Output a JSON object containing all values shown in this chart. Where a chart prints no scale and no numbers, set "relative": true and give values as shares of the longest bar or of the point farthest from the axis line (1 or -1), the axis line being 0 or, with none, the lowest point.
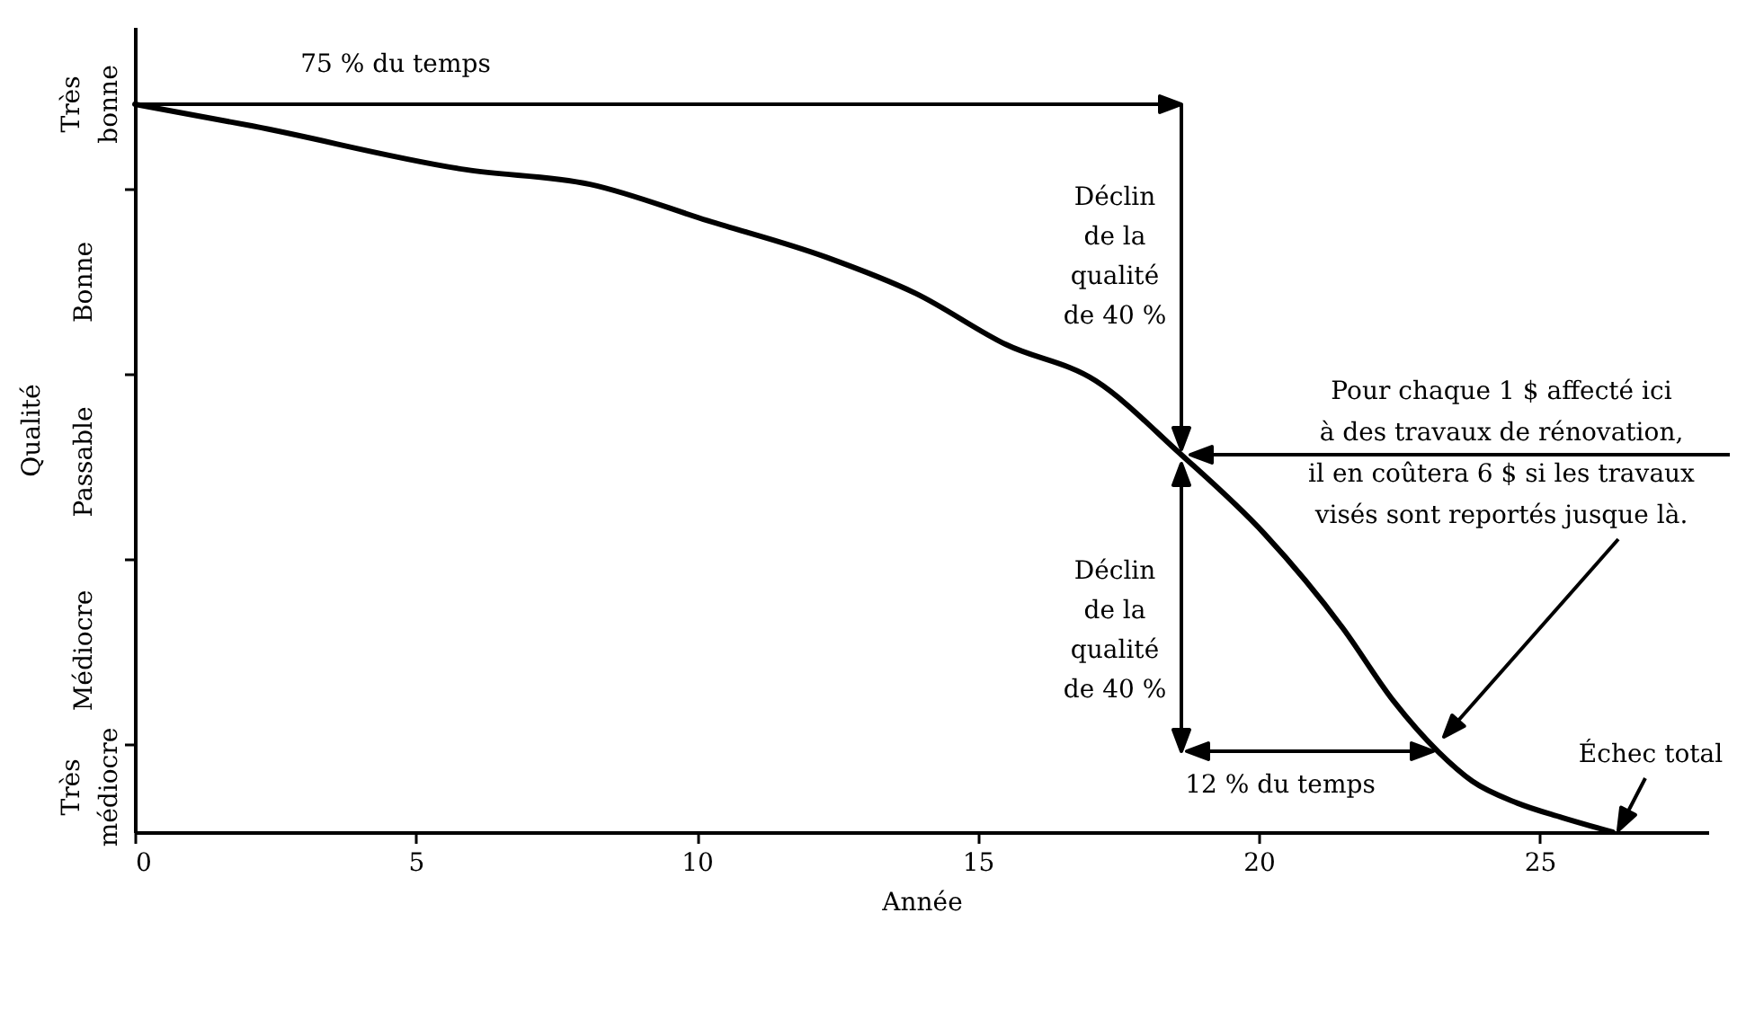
{
  "chart_data": {
    "type": "line",
    "relative": true,
    "xlabel": "Année",
    "ylabel": "Qualité",
    "x": [
      0,
      2.1,
      5.9,
      8.1,
      10.2,
      12.3,
      13.9,
      15.5,
      17.1,
      18.6,
      20.1,
      21.5,
      22.4,
      23.2,
      23.8,
      24.6,
      25.4,
      26.3
    ],
    "series": [
      {
        "color": "#000000",
        "values": [
          1,
          0.97,
          0.91,
          0.89,
          0.84,
          0.79,
          0.74,
          0.67,
          0.62,
          0.52,
          0.41,
          0.28,
          0.18,
          0.11,
          0.07,
          0.04,
          0.02,
          0
        ]
      }
    ],
    "xlim": [
      0,
      28
    ],
    "xticks": [
      0,
      5,
      10,
      15,
      20,
      25
    ],
    "line_style": "solid",
    "annotations": [
      "Très bonne",
      "Bonne",
      "Passable",
      "Médiocre",
      "Très médiocre",
      "75 % du temps",
      "Déclin\nde la\nqualité\nde 40 %",
      "Pour chaque 1 $ affecté ici\nà des travaux de rénovation,\nil en coûtera 6 $ si les travaux\nvisés sont reportés jusque là.",
      "Déclin\nde la\nqualité\nde 40 %",
      "12 % du temps",
      "Échec total"
    ]
  }
}
